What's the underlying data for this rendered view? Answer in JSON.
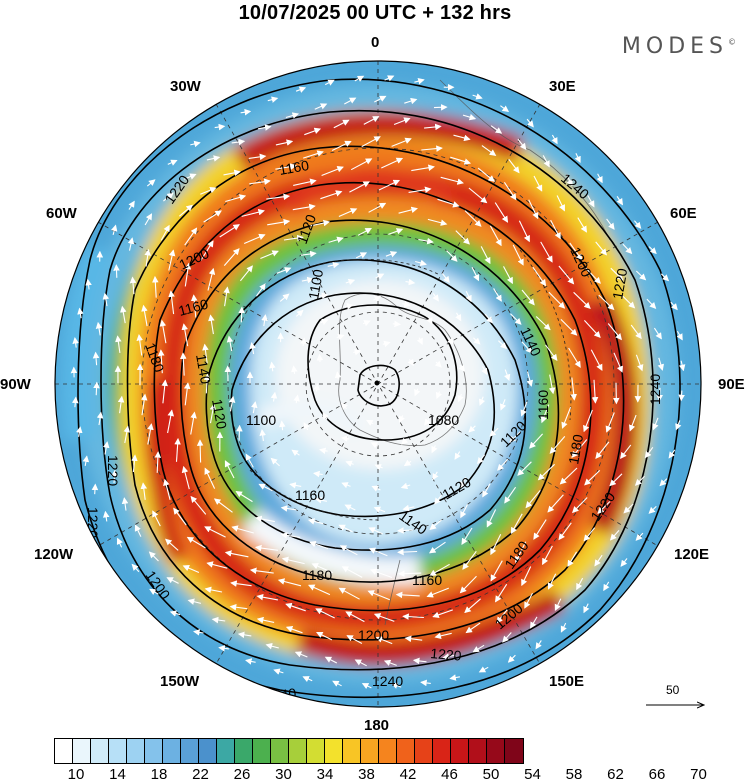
{
  "header": {
    "title": "10/07/2025  00 UTC  + 132 hrs",
    "brand": "MODES"
  },
  "longitudes": {
    "top": "0",
    "bottom": "180",
    "left": "90W",
    "right": "90E",
    "nw30": "30W",
    "nw60": "60W",
    "ne30": "30E",
    "ne60": "60E",
    "sw120": "120W",
    "sw150": "150W",
    "se120": "120E",
    "se150": "150E"
  },
  "contour_labels": [
    "1240",
    "1220",
    "1200",
    "1180",
    "1160",
    "1140",
    "1120",
    "1100",
    "1080"
  ],
  "vector_legend": {
    "value": "50"
  },
  "colorbar": {
    "colors": [
      "#ffffff",
      "#eaf6fc",
      "#d0ecfa",
      "#b7e0f7",
      "#9dd2f2",
      "#84c2eb",
      "#6cb1e2",
      "#5aa0d7",
      "#4b91cc",
      "#3ca8a4",
      "#3aa86a",
      "#4cb04e",
      "#79c043",
      "#a7cf3a",
      "#d3dd32",
      "#f3e12c",
      "#f8c525",
      "#f7a521",
      "#f5841e",
      "#f0621b",
      "#e64218",
      "#d92417",
      "#c81618",
      "#b10f1a",
      "#96091a",
      "#7f0519"
    ],
    "tick_labels": [
      "10",
      "14",
      "18",
      "22",
      "26",
      "30",
      "34",
      "38",
      "42",
      "46",
      "50",
      "54",
      "58",
      "62",
      "66",
      "70"
    ]
  }
}
